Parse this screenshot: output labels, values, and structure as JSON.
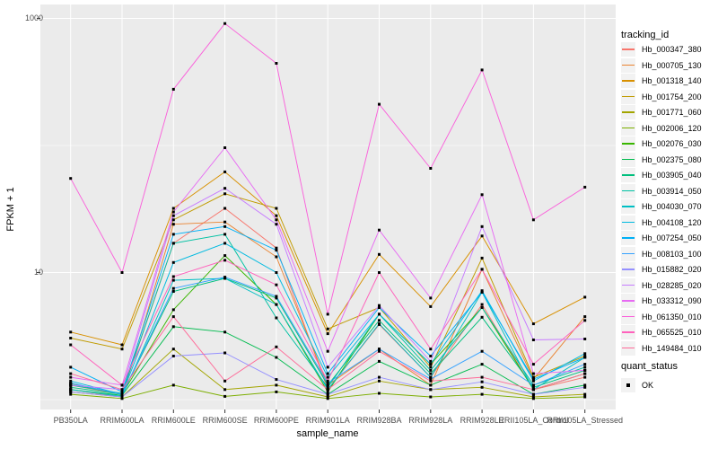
{
  "figure": {
    "background": "#FFFFFF",
    "panel_bg": "#EBEBEB",
    "grid_color": "#FFFFFF",
    "tick_color": "#333333",
    "tick_label_color": "#4D4D4D",
    "point_color": "#000000"
  },
  "chart_data": {
    "type": "line",
    "title": "",
    "xlabel": "sample_name",
    "ylabel": "FPKM + 1",
    "y_scale": "log10",
    "ylim": [
      0.84,
      1290
    ],
    "yticks": [
      {
        "label": "1000",
        "value": 1000
      },
      {
        "label": "10",
        "value": 10
      }
    ],
    "gridlines_major": [
      10,
      1000
    ],
    "gridlines_minor": [
      1,
      100
    ],
    "legend_position": "right",
    "categories": [
      "PB350LA",
      "RRIM600LA",
      "RRIM600LE",
      "RRIM600SE",
      "RRIM600PE",
      "RRIM901LA",
      "RRIM928BA",
      "RRIM928LA",
      "RRIM928LE",
      "RRII105LA_Control",
      "RRII105LA_Stressed"
    ],
    "series": [
      {
        "name": "Hb_000347_380",
        "color": "#F8766D",
        "values": [
          1.3,
          1.1,
          17,
          32,
          15.6,
          1.2,
          3.9,
          1.5,
          5.6,
          1.2,
          1.5
        ]
      },
      {
        "name": "Hb_000705_130",
        "color": "#EA8331",
        "values": [
          1.2,
          1.05,
          24,
          25,
          13.3,
          1.3,
          2.5,
          1.3,
          10.6,
          1.45,
          4.5
        ]
      },
      {
        "name": "Hb_001318_140",
        "color": "#D89000",
        "values": [
          3.4,
          2.7,
          32,
          62,
          28,
          3.3,
          13.9,
          5.4,
          19.4,
          3.95,
          6.4
        ]
      },
      {
        "name": "Hb_001754_200",
        "color": "#C09B00",
        "values": [
          3.05,
          2.5,
          26,
          41.7,
          32,
          3.6,
          5.3,
          1.8,
          13,
          1.5,
          2.2
        ]
      },
      {
        "name": "Hb_001771_060",
        "color": "#A3A500",
        "values": [
          1.15,
          1.05,
          2.5,
          1.2,
          1.3,
          1.05,
          1.4,
          1.2,
          1.25,
          1.05,
          1.1
        ]
      },
      {
        "name": "Hb_002006_120",
        "color": "#7CAE00",
        "values": [
          1.1,
          1.02,
          1.3,
          1.06,
          1.15,
          1.02,
          1.12,
          1.05,
          1.1,
          1.02,
          1.05
        ]
      },
      {
        "name": "Hb_002076_030",
        "color": "#39B600",
        "values": [
          1.34,
          1.1,
          5.1,
          13.6,
          5.6,
          1.15,
          4.7,
          1.9,
          5.3,
          1.2,
          1.6
        ]
      },
      {
        "name": "Hb_002375_080",
        "color": "#00BB4E",
        "values": [
          1.2,
          1.08,
          3.75,
          3.4,
          2.15,
          1.1,
          2.0,
          1.3,
          1.9,
          1.1,
          1.3
        ]
      },
      {
        "name": "Hb_003905_040",
        "color": "#00BF7D",
        "values": [
          1.25,
          1.1,
          7.1,
          9.0,
          6.3,
          1.3,
          4.2,
          1.6,
          4.45,
          1.25,
          1.7
        ]
      },
      {
        "name": "Hb_003914_050",
        "color": "#00C1A3",
        "values": [
          1.3,
          1.12,
          17,
          20,
          4.4,
          1.25,
          4.7,
          1.7,
          5.3,
          1.3,
          1.8
        ]
      },
      {
        "name": "Hb_004030_070",
        "color": "#00BFC4",
        "values": [
          1.2,
          1.06,
          8.7,
          9.0,
          5.6,
          1.2,
          3.95,
          1.5,
          7.0,
          1.2,
          2.15
        ]
      },
      {
        "name": "Hb_004108_120",
        "color": "#00BAE0",
        "values": [
          1.4,
          1.1,
          12,
          17,
          10,
          1.5,
          4.7,
          1.9,
          7.2,
          1.4,
          2.3
        ]
      },
      {
        "name": "Hb_007254_050",
        "color": "#00B0F6",
        "values": [
          1.8,
          1.15,
          20,
          23,
          15,
          1.6,
          5.3,
          2.2,
          7.0,
          1.45,
          2.15
        ]
      },
      {
        "name": "Hb_008103_100",
        "color": "#35A2FF",
        "values": [
          1.35,
          1.1,
          7.5,
          9.2,
          6.5,
          1.35,
          2.5,
          1.45,
          2.4,
          1.3,
          1.9
        ]
      },
      {
        "name": "Hb_015882_020",
        "color": "#9590FF",
        "values": [
          1.15,
          1.05,
          2.2,
          2.33,
          1.44,
          1.1,
          1.5,
          1.2,
          1.38,
          1.1,
          1.25
        ]
      },
      {
        "name": "Hb_028285_020",
        "color": "#C77CFF",
        "values": [
          1.3,
          1.2,
          28,
          46,
          24,
          1.8,
          5.5,
          2.0,
          23,
          2.95,
          3.0
        ]
      },
      {
        "name": "Hb_033312_090",
        "color": "#E76BF3",
        "values": [
          1.5,
          1.3,
          30,
          96,
          26,
          2.4,
          21.6,
          6.3,
          41,
          1.6,
          1.7
        ]
      },
      {
        "name": "Hb_061350_010",
        "color": "#FA62DB",
        "values": [
          55,
          10,
          277,
          912,
          443,
          4.7,
          211,
          66,
          393,
          26,
          47
        ]
      },
      {
        "name": "Hb_065525_010",
        "color": "#FF62BC",
        "values": [
          2.7,
          1.3,
          9.3,
          12.5,
          8.0,
          1.4,
          10,
          2.5,
          10.6,
          1.9,
          4.2
        ]
      },
      {
        "name": "Hb_149484_010",
        "color": "#FF6A98",
        "values": [
          1.6,
          1.2,
          4.5,
          1.4,
          2.6,
          1.2,
          2.4,
          1.4,
          1.5,
          1.2,
          1.6
        ]
      }
    ]
  },
  "legend": {
    "tracking_title": "tracking_id",
    "quant_title": "quant_status",
    "quant_items": [
      {
        "label": "OK"
      }
    ],
    "key_bg": "#F2F2F2"
  }
}
